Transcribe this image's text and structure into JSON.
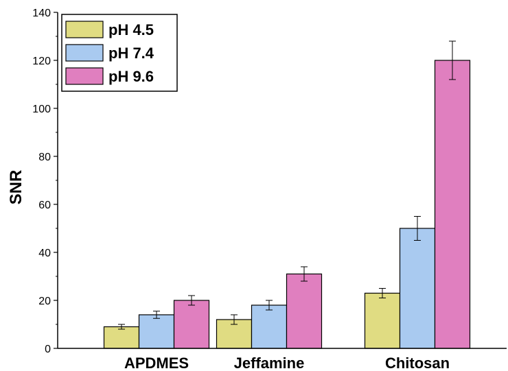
{
  "chart_data": {
    "type": "bar",
    "categories": [
      "APDMES",
      "Jeffamine",
      "Chitosan"
    ],
    "series": [
      {
        "name": "pH 4.5",
        "color": "#e0dc82",
        "values": [
          9,
          12,
          23
        ],
        "errors": [
          1,
          2,
          2
        ]
      },
      {
        "name": "pH 7.4",
        "color": "#a9caf0",
        "values": [
          14,
          18,
          50
        ],
        "errors": [
          1.5,
          2,
          5
        ]
      },
      {
        "name": "pH 9.6",
        "color": "#e07fbf",
        "values": [
          20,
          31,
          120
        ],
        "errors": [
          2,
          3,
          8
        ]
      }
    ],
    "title": "",
    "xlabel": "",
    "ylabel": "SNR",
    "ylim": [
      0,
      140
    ],
    "yticks": [
      0,
      20,
      40,
      60,
      80,
      100,
      120,
      140
    ],
    "legend_position": "top-left",
    "grid": false
  }
}
